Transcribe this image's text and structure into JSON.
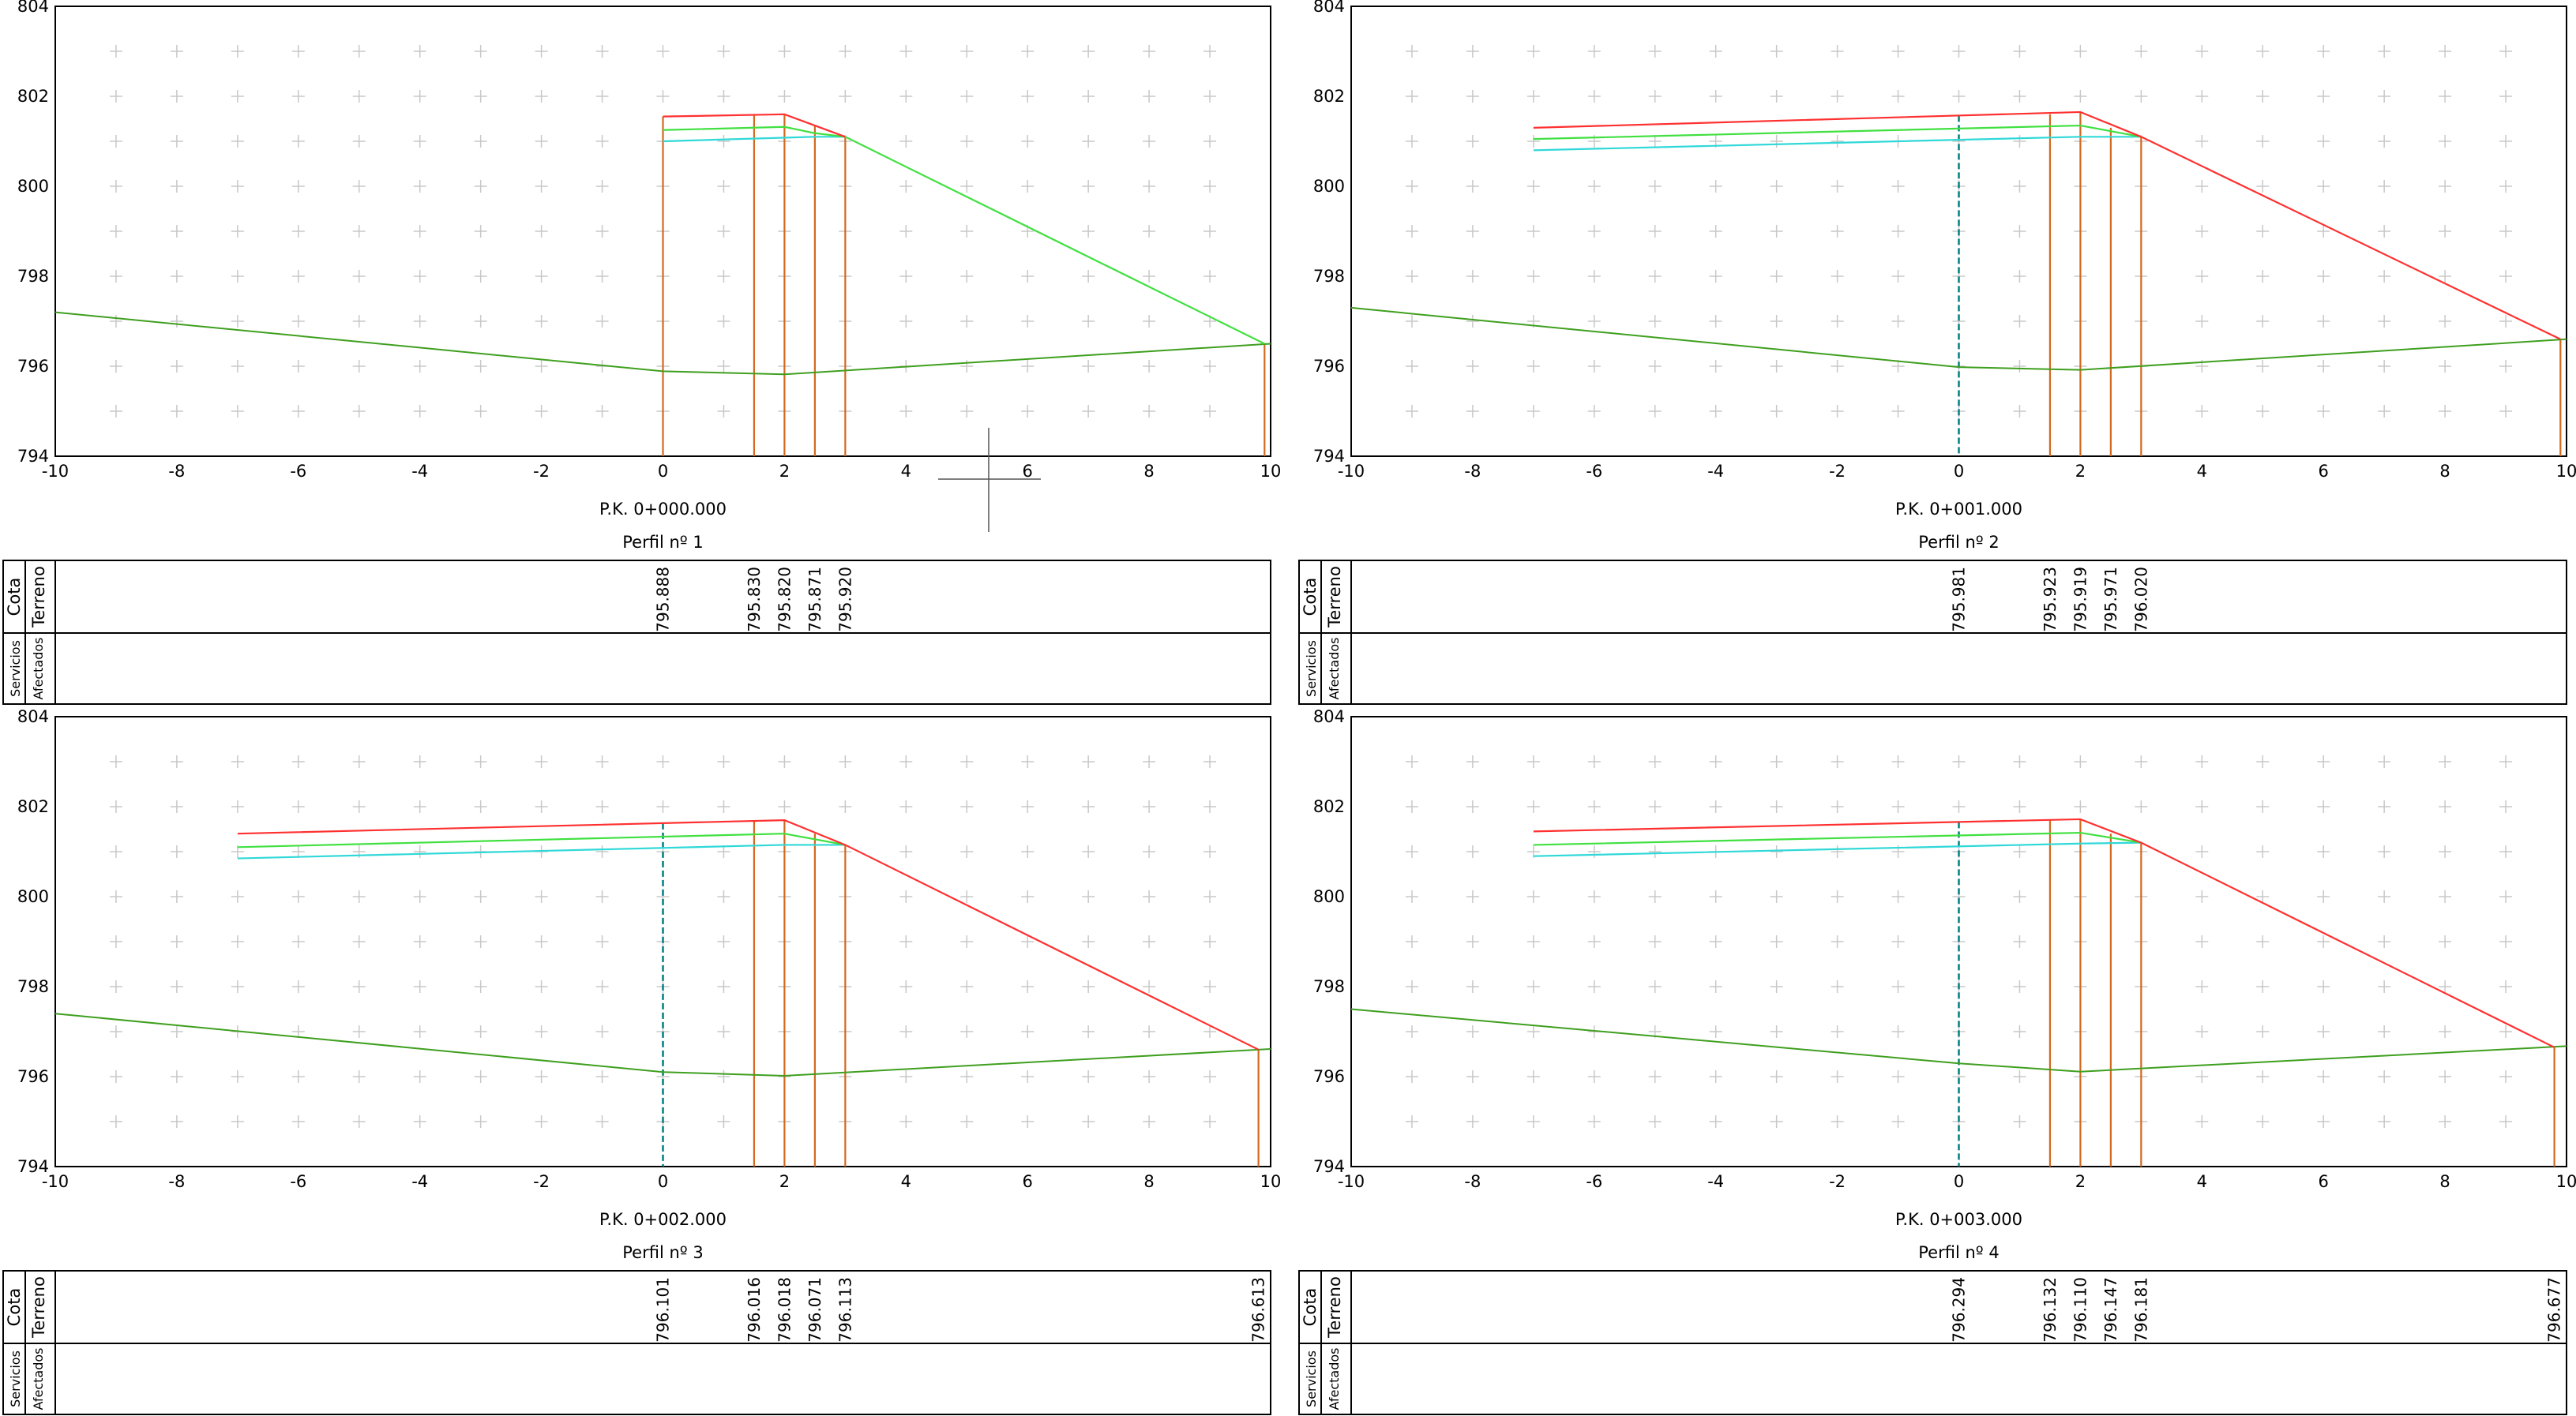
{
  "row_labels": {
    "cota": "Cota",
    "terreno": "Terreno",
    "servicios": "Servicios",
    "afectados": "Afectados"
  },
  "chart_data": [
    {
      "type": "line",
      "pk_label": "P.K. 0+000.000",
      "title": "Perfil nº 1",
      "xlim": [
        -10,
        10
      ],
      "ylim": [
        794,
        804
      ],
      "x_ticks": [
        -10,
        -8,
        -6,
        -4,
        -2,
        0,
        2,
        4,
        6,
        8,
        10
      ],
      "y_ticks": [
        794,
        796,
        798,
        800,
        802,
        804
      ],
      "grid": "crosses",
      "colors": {
        "terrain": "#3f9f1f",
        "red": "#ff3030",
        "green": "#40e040",
        "cyan": "#30d8d8",
        "vertical": "#d2691e",
        "axis_center": "#008080"
      },
      "terrain": [
        [
          -10,
          797.2
        ],
        [
          0,
          795.888
        ],
        [
          2,
          795.82
        ],
        [
          10,
          796.5
        ]
      ],
      "red_line": [
        [
          0,
          801.55
        ],
        [
          2,
          801.6
        ],
        [
          2.5,
          801.35
        ],
        [
          3,
          801.1
        ]
      ],
      "green_line": [
        [
          0,
          801.25
        ],
        [
          2,
          801.32
        ],
        [
          2.5,
          801.18
        ],
        [
          3,
          801.1
        ],
        [
          9.9,
          796.5
        ]
      ],
      "cyan_line": [
        [
          0,
          801.0
        ],
        [
          2.5,
          801.1
        ],
        [
          3,
          801.1
        ]
      ],
      "verticals": [
        [
          0,
          801.55
        ],
        [
          1.5,
          801.6
        ],
        [
          2,
          801.6
        ],
        [
          2.5,
          801.35
        ],
        [
          3,
          801.1
        ],
        [
          9.9,
          796.5
        ]
      ],
      "center_axis": false,
      "terrain_marks": [
        {
          "x": 0,
          "value": "795.888"
        },
        {
          "x": 1.5,
          "value": "795.830"
        },
        {
          "x": 2,
          "value": "795.820"
        },
        {
          "x": 2.5,
          "value": "795.871"
        },
        {
          "x": 3,
          "value": "795.920"
        }
      ]
    },
    {
      "type": "line",
      "pk_label": "P.K. 0+001.000",
      "title": "Perfil nº 2",
      "xlim": [
        -10,
        10
      ],
      "ylim": [
        794,
        804
      ],
      "x_ticks": [
        -10,
        -8,
        -6,
        -4,
        -2,
        0,
        2,
        4,
        6,
        8,
        10
      ],
      "y_ticks": [
        794,
        796,
        798,
        800,
        802,
        804
      ],
      "grid": "crosses",
      "colors": {
        "terrain": "#3f9f1f",
        "red": "#ff3030",
        "green": "#40e040",
        "cyan": "#30d8d8",
        "vertical": "#d2691e",
        "axis_center": "#008080"
      },
      "terrain": [
        [
          -10,
          797.3
        ],
        [
          0,
          795.981
        ],
        [
          2,
          795.919
        ],
        [
          10,
          796.6
        ]
      ],
      "red_line": [
        [
          -7,
          801.3
        ],
        [
          2,
          801.65
        ],
        [
          3,
          801.1
        ],
        [
          9.9,
          796.6
        ]
      ],
      "green_line": [
        [
          -7,
          801.05
        ],
        [
          2,
          801.35
        ],
        [
          3,
          801.1
        ]
      ],
      "cyan_line": [
        [
          -7,
          800.8
        ],
        [
          2,
          801.1
        ],
        [
          3,
          801.1
        ]
      ],
      "verticals": [
        [
          1.5,
          801.6
        ],
        [
          2,
          801.65
        ],
        [
          2.5,
          801.3
        ],
        [
          3,
          801.1
        ],
        [
          9.9,
          796.6
        ]
      ],
      "center_axis": true,
      "terrain_marks": [
        {
          "x": 0,
          "value": "795.981"
        },
        {
          "x": 1.5,
          "value": "795.923"
        },
        {
          "x": 2,
          "value": "795.919"
        },
        {
          "x": 2.5,
          "value": "795.971"
        },
        {
          "x": 3,
          "value": "796.020"
        }
      ]
    },
    {
      "type": "line",
      "pk_label": "P.K. 0+002.000",
      "title": "Perfil nº 3",
      "xlim": [
        -10,
        10
      ],
      "ylim": [
        794,
        804
      ],
      "x_ticks": [
        -10,
        -8,
        -6,
        -4,
        -2,
        0,
        2,
        4,
        6,
        8,
        10
      ],
      "y_ticks": [
        794,
        796,
        798,
        800,
        802,
        804
      ],
      "grid": "crosses",
      "colors": {
        "terrain": "#3f9f1f",
        "red": "#ff3030",
        "green": "#40e040",
        "cyan": "#30d8d8",
        "vertical": "#d2691e",
        "axis_center": "#008080"
      },
      "terrain": [
        [
          -10,
          797.4
        ],
        [
          0,
          796.101
        ],
        [
          2,
          796.018
        ],
        [
          10,
          796.613
        ]
      ],
      "red_line": [
        [
          -7,
          801.4
        ],
        [
          2,
          801.7
        ],
        [
          3,
          801.15
        ],
        [
          9.8,
          796.6
        ]
      ],
      "green_line": [
        [
          -7,
          801.1
        ],
        [
          2,
          801.4
        ],
        [
          3,
          801.15
        ]
      ],
      "cyan_line": [
        [
          -7,
          800.85
        ],
        [
          2,
          801.15
        ],
        [
          3,
          801.15
        ]
      ],
      "verticals": [
        [
          1.5,
          801.7
        ],
        [
          2,
          801.7
        ],
        [
          2.5,
          801.4
        ],
        [
          3,
          801.15
        ],
        [
          9.8,
          796.6
        ]
      ],
      "center_axis": true,
      "terrain_marks": [
        {
          "x": 0,
          "value": "796.101"
        },
        {
          "x": 1.5,
          "value": "796.016"
        },
        {
          "x": 2,
          "value": "796.018"
        },
        {
          "x": 2.5,
          "value": "796.071"
        },
        {
          "x": 3,
          "value": "796.113"
        },
        {
          "x": 9.8,
          "value": "796.613"
        }
      ]
    },
    {
      "type": "line",
      "pk_label": "P.K. 0+003.000",
      "title": "Perfil nº 4",
      "xlim": [
        -10,
        10
      ],
      "ylim": [
        794,
        804
      ],
      "x_ticks": [
        -10,
        -8,
        -6,
        -4,
        -2,
        0,
        2,
        4,
        6,
        8,
        10
      ],
      "y_ticks": [
        794,
        796,
        798,
        800,
        802,
        804
      ],
      "grid": "crosses",
      "colors": {
        "terrain": "#3f9f1f",
        "red": "#ff3030",
        "green": "#40e040",
        "cyan": "#30d8d8",
        "vertical": "#d2691e",
        "axis_center": "#008080"
      },
      "terrain": [
        [
          -10,
          797.5
        ],
        [
          0,
          796.294
        ],
        [
          2,
          796.11
        ],
        [
          10,
          796.677
        ]
      ],
      "red_line": [
        [
          -7,
          801.45
        ],
        [
          2,
          801.72
        ],
        [
          3,
          801.2
        ],
        [
          9.8,
          796.65
        ]
      ],
      "green_line": [
        [
          -7,
          801.15
        ],
        [
          2,
          801.42
        ],
        [
          3,
          801.2
        ]
      ],
      "cyan_line": [
        [
          -7,
          800.9
        ],
        [
          2,
          801.18
        ],
        [
          3,
          801.2
        ]
      ],
      "verticals": [
        [
          1.5,
          801.72
        ],
        [
          2,
          801.72
        ],
        [
          2.5,
          801.4
        ],
        [
          3,
          801.2
        ],
        [
          9.8,
          796.65
        ]
      ],
      "center_axis": true,
      "terrain_marks": [
        {
          "x": 0,
          "value": "796.294"
        },
        {
          "x": 1.5,
          "value": "796.132"
        },
        {
          "x": 2,
          "value": "796.110"
        },
        {
          "x": 2.5,
          "value": "796.147"
        },
        {
          "x": 3,
          "value": "796.181"
        },
        {
          "x": 9.8,
          "value": "796.677"
        }
      ]
    }
  ]
}
